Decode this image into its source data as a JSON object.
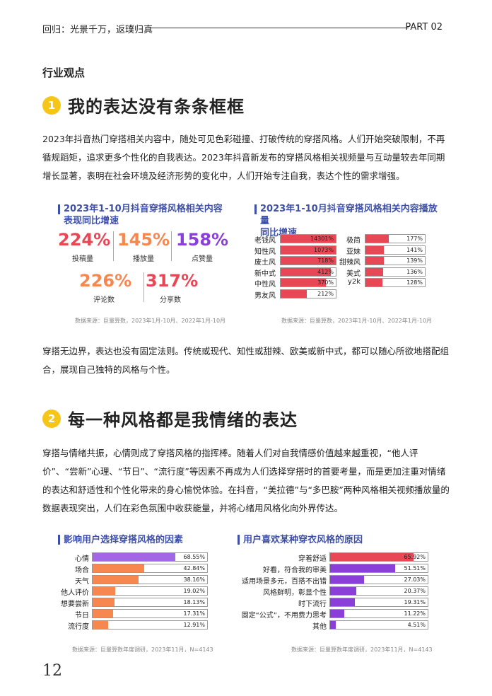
{
  "header": {
    "left": "回归：光景千万，返璞归真",
    "right": "PART 02"
  },
  "section_label": "行业观点",
  "section1": {
    "badge": "1",
    "title": "我的表达没有条条框框",
    "para": "2023年抖音热门穿搭相关内容中，随处可见色彩碰撞、打破传统的穿搭风格。人们开始突破限制，不再循规蹈矩，追求更多个性化的自我表达。2023年抖音新发布的穿搭风格相关视频量与互动量较去年同期增长显著，表明在社会环境及经济形势的变化中，人们开始专注自我，表达个性的需求增强。",
    "para2": "穿搭无边界，表达也没有固定法则。传统或现代、知性或甜辣、欧美或新中式，都可以随心所欲地搭配组合，展现自己独特的风格与个性。"
  },
  "chart1": {
    "title_line1": "2023年1-10月抖音穿搭风格相关内容",
    "title_line2": "表现同比增速",
    "stats": [
      {
        "value": "224%",
        "label": "投稿量",
        "color": "#e84855"
      },
      {
        "value": "145%",
        "label": "播放量",
        "color": "#f5874f"
      },
      {
        "value": "158%",
        "label": "点赞量",
        "color": "#8b3fd9"
      },
      {
        "value": "226%",
        "label": "评论数",
        "color": "#f5874f"
      },
      {
        "value": "317%",
        "label": "分享数",
        "color": "#e84855"
      }
    ],
    "source": "数据来源：巨量算数，2023年1月-10月、2022年1月-10月"
  },
  "chart2": {
    "title_line1": "2023年1-10月抖音穿搭风格相关内容播放量",
    "title_line2": "同比增速",
    "source": "数据来源：巨量算数，2023年1月-10月、2022年1月-10月"
  },
  "chart_data": [
    {
      "type": "bar",
      "title": "2023年1-10月抖音穿搭风格相关内容播放量同比增速",
      "categories": [
        "老钱风",
        "知性风",
        "废土风",
        "新中式",
        "中性风",
        "男友风",
        "极简",
        "亚妹",
        "甜辣风",
        "美式",
        "y2k"
      ],
      "values": [
        14301,
        1073,
        718,
        412,
        370,
        212,
        177,
        141,
        139,
        136,
        128
      ],
      "value_labels": [
        "14301%",
        "1073%",
        "718%",
        "412%",
        "370%",
        "212%",
        "177%",
        "141%",
        "139%",
        "136%",
        "128%"
      ],
      "color": "#e84855"
    },
    {
      "type": "bar",
      "title": "影响用户选择穿搭风格的因素",
      "categories": [
        "心情",
        "场合",
        "天气",
        "他人评价",
        "想要尝新",
        "节日",
        "流行度"
      ],
      "values": [
        68.55,
        42.84,
        38.16,
        19.02,
        18.13,
        17.31,
        12.91
      ],
      "value_labels": [
        "68.55%",
        "42.84%",
        "38.16%",
        "19.02%",
        "18.13%",
        "17.31%",
        "12.91%"
      ],
      "colors": [
        "#a367e6",
        "#f5874f",
        "#f5874f",
        "#f5874f",
        "#f5874f",
        "#f5874f",
        "#f5874f"
      ]
    },
    {
      "type": "bar",
      "title": "用户喜欢某种穿衣风格的原因",
      "categories": [
        "穿着舒适",
        "好看，符合我的审美",
        "适用场景多元，百搭不出错",
        "风格鲜明，彰显个性",
        "时下流行",
        "固定“公式”，不用费力思考",
        "其他"
      ],
      "values": [
        65.92,
        51.51,
        27.03,
        20.37,
        19.31,
        11.22,
        4.51
      ],
      "value_labels": [
        "65.92%",
        "51.51%",
        "27.03%",
        "20.37%",
        "19.31%",
        "11.22%",
        "4.51%"
      ],
      "colors": [
        "#e84855",
        "#8b3fd9",
        "#8b3fd9",
        "#8b3fd9",
        "#8b3fd9",
        "#8b3fd9",
        "#8b3fd9"
      ]
    }
  ],
  "section2": {
    "badge": "2",
    "title": "每一种风格都是我情绪的表达",
    "para": "穿搭与情绪共振，心情则成了穿搭风格的指挥棒。随着人们对自我情感价值越来越重视，“他人评价”、“尝新”心理、“节日”、“流行度”等因素不再成为人们选择穿搭时的首要考量，而是更加注重对情绪的表达和舒适性和个性化带来的身心愉悦体验。在抖音，“美拉德”与“多巴胺”两种风格相关视频播放量的数据表现突出，人们在彩色氛围中收获能量，并将心绪用风格化向外界传达。"
  },
  "chart3": {
    "title": "影响用户选择穿搭风格的因素",
    "source": "数据来源：巨量算数年度调研，2023年11月，N=4143"
  },
  "chart4": {
    "title": "用户喜欢某种穿衣风格的原因",
    "source": "数据来源：巨量算数年度调研，2023年11月，N=4143"
  },
  "page_number": "12"
}
